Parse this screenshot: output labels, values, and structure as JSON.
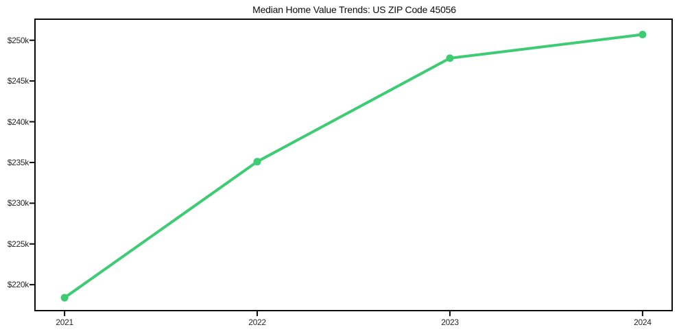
{
  "window": {
    "background_color": "#ffffff"
  },
  "chart_data": {
    "type": "line",
    "title": "Median Home Value Trends: US ZIP Code 45056",
    "x": [
      2021,
      2022,
      2023,
      2024
    ],
    "x_tick_labels": [
      "2021",
      "2022",
      "2023",
      "2024"
    ],
    "series": [
      {
        "name": "median-home-value",
        "values": [
          218.4,
          235.1,
          247.8,
          250.7
        ],
        "unit": "thousand USD"
      }
    ],
    "y_ticks": [
      220,
      225,
      230,
      235,
      240,
      245,
      250
    ],
    "y_tick_labels": [
      "$220k",
      "$225k",
      "$230k",
      "$235k",
      "$240k",
      "$245k",
      "$250k"
    ],
    "xlim": [
      2020.85,
      2024.15
    ],
    "ylim": [
      216.9,
      252.5
    ],
    "grid": false,
    "legend": false,
    "xlabel": "",
    "ylabel": "",
    "line_color": "#3dcc73",
    "marker": "circle",
    "marker_radius": 5.5,
    "line_width": 4,
    "axis_color": "#0a0a0a",
    "tick_label_color": "#262626",
    "title_color": "#0d0d0d"
  }
}
